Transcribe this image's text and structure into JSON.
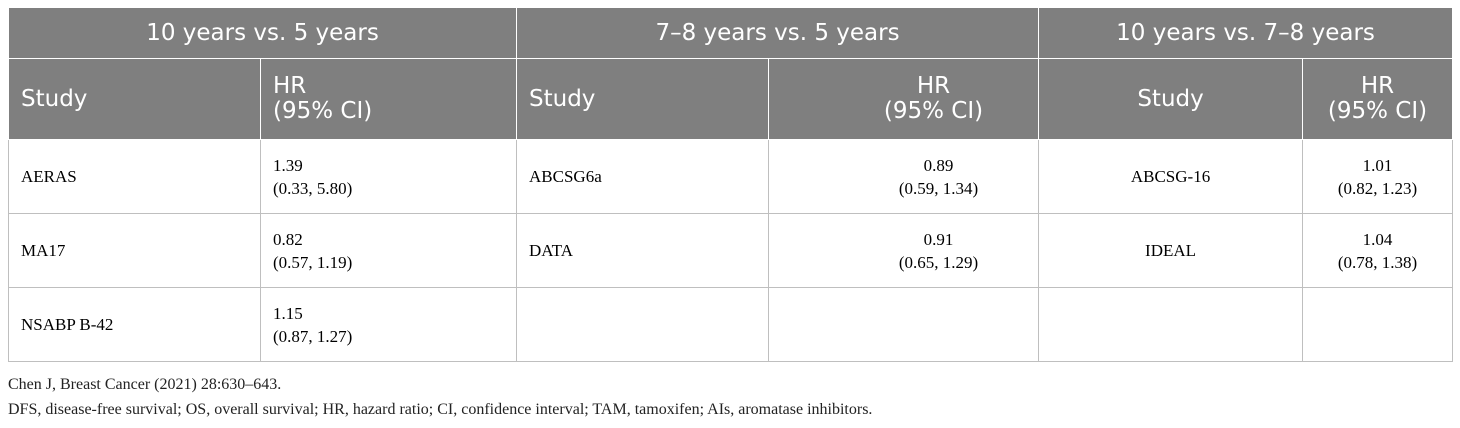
{
  "groups": [
    "10 years vs. 5 years",
    "7–8 years vs. 5 years",
    "10 years vs. 7–8 years"
  ],
  "sub": {
    "study": "Study",
    "hr_line1": "HR",
    "hr_line2": "(95% CI)"
  },
  "rows": [
    [
      {
        "study": "AERAS",
        "hr": "1.39",
        "ci": "(0.33, 5.80)"
      },
      {
        "study": "ABCSG6a",
        "hr": "0.89",
        "ci": "(0.59, 1.34)"
      },
      {
        "study": "ABCSG-16",
        "hr": "1.01",
        "ci": "(0.82, 1.23)"
      }
    ],
    [
      {
        "study": "MA17",
        "hr": "0.82",
        "ci": "(0.57, 1.19)"
      },
      {
        "study": "DATA",
        "hr": "0.91",
        "ci": "(0.65, 1.29)"
      },
      {
        "study": "IDEAL",
        "hr": "1.04",
        "ci": "(0.78, 1.38)"
      }
    ],
    [
      {
        "study": "NSABP B-42",
        "hr": "1.15",
        "ci": "(0.87, 1.27)"
      },
      {
        "study": "",
        "hr": "",
        "ci": ""
      },
      {
        "study": "",
        "hr": "",
        "ci": ""
      }
    ]
  ],
  "footnotes": [
    "Chen J, Breast Cancer (2021) 28:630–643.",
    "DFS, disease-free survival; OS, overall survival; HR, hazard ratio; CI, confidence interval; TAM, tamoxifen; AIs, aromatase inhibitors."
  ]
}
